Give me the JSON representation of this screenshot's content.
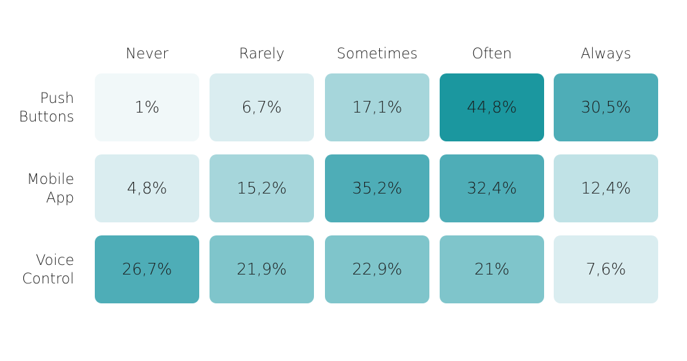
{
  "chart_data": {
    "type": "heatmap",
    "columns": [
      "Never",
      "Rarely",
      "Sometimes",
      "Often",
      "Always"
    ],
    "rows": [
      {
        "label_lines": [
          "Push",
          "Buttons"
        ],
        "cells": [
          {
            "text": "1%",
            "value": 1,
            "color": "#f1f8f9"
          },
          {
            "text": "6,7%",
            "value": 6.7,
            "color": "#daedf0"
          },
          {
            "text": "17,1%",
            "value": 17.1,
            "color": "#a6d6db"
          },
          {
            "text": "44,8%",
            "value": 44.8,
            "color": "#1b979f"
          },
          {
            "text": "30,5%",
            "value": 30.5,
            "color": "#4eadb7"
          }
        ]
      },
      {
        "label_lines": [
          "Mobile",
          "App"
        ],
        "cells": [
          {
            "text": "4,8%",
            "value": 4.8,
            "color": "#daedf0"
          },
          {
            "text": "15,2%",
            "value": 15.2,
            "color": "#a6d6db"
          },
          {
            "text": "35,2%",
            "value": 35.2,
            "color": "#4eadb7"
          },
          {
            "text": "32,4%",
            "value": 32.4,
            "color": "#4eadb7"
          },
          {
            "text": "12,4%",
            "value": 12.4,
            "color": "#c0e2e6"
          }
        ]
      },
      {
        "label_lines": [
          "Voice",
          "Control"
        ],
        "cells": [
          {
            "text": "26,7%",
            "value": 26.7,
            "color": "#4eadb7"
          },
          {
            "text": "21,9%",
            "value": 21.9,
            "color": "#7fc5cb"
          },
          {
            "text": "22,9%",
            "value": 22.9,
            "color": "#7fc5cb"
          },
          {
            "text": "21%",
            "value": 21,
            "color": "#7fc5cb"
          },
          {
            "text": "7,6%",
            "value": 7.6,
            "color": "#daedf0"
          }
        ]
      }
    ]
  }
}
